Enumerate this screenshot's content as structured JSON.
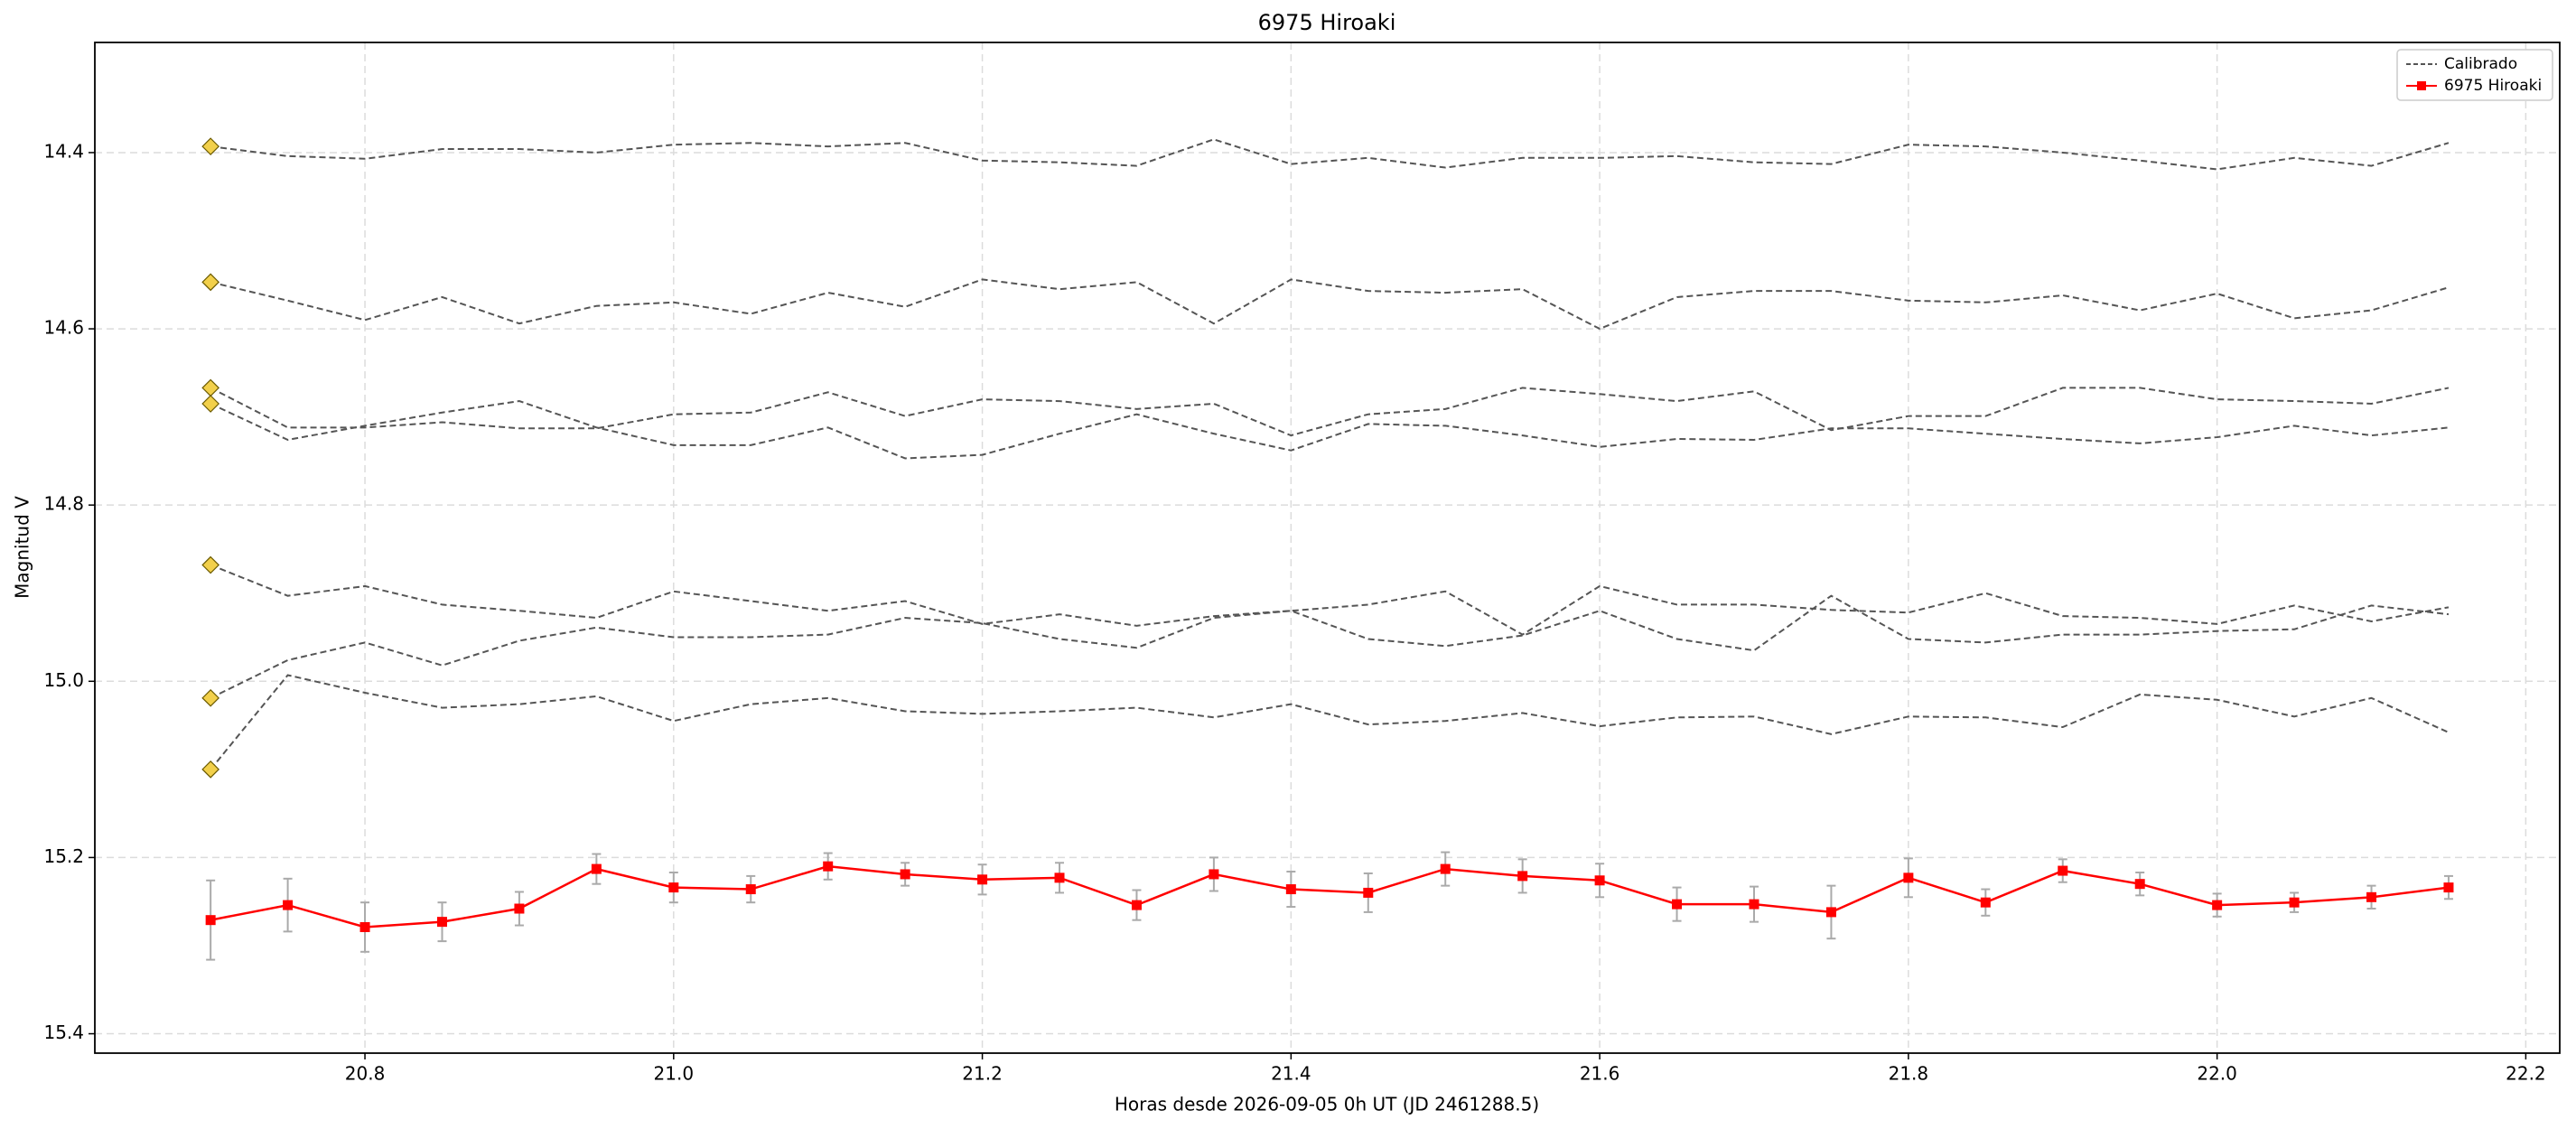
{
  "chart_data": {
    "type": "line",
    "title": "6975 Hiroaki",
    "x_label": "Horas desde 2026-09-05 0h UT (JD 2461288.5)",
    "y_label": "Magnitud V",
    "x": [
      20.7,
      20.75,
      20.8,
      20.85,
      20.9,
      20.95,
      21.0,
      21.05,
      21.1,
      21.15,
      21.2,
      21.25,
      21.3,
      21.35,
      21.4,
      21.45,
      21.5,
      21.55,
      21.6,
      21.65,
      21.7,
      21.75,
      21.8,
      21.85,
      21.9,
      21.95,
      22.0,
      22.05,
      22.1,
      22.15
    ],
    "series": [
      {
        "name": "Calibrado",
        "color": "#555555",
        "dashed": true,
        "start_marker_color": "#f2d04b",
        "values": [
          [
            14.393,
            14.404,
            14.407,
            14.396,
            14.396,
            14.4,
            14.391,
            14.389,
            14.393,
            14.389,
            14.409,
            14.411,
            14.415,
            14.385,
            14.413,
            14.406,
            14.417,
            14.406,
            14.406,
            14.404,
            14.411,
            14.413,
            14.391,
            14.393,
            14.4,
            14.409,
            14.419,
            14.406,
            14.415,
            14.389
          ],
          [
            14.547,
            14.568,
            14.59,
            14.564,
            14.594,
            14.574,
            14.57,
            14.583,
            14.559,
            14.575,
            14.544,
            14.555,
            14.547,
            14.594,
            14.544,
            14.557,
            14.559,
            14.555,
            14.6,
            14.564,
            14.557,
            14.557,
            14.568,
            14.57,
            14.562,
            14.579,
            14.56,
            14.588,
            14.579,
            14.553
          ],
          [
            14.667,
            14.712,
            14.712,
            14.706,
            14.713,
            14.713,
            14.697,
            14.695,
            14.672,
            14.699,
            14.68,
            14.682,
            14.691,
            14.685,
            14.721,
            14.697,
            14.691,
            14.667,
            14.674,
            14.682,
            14.671,
            14.715,
            14.699,
            14.699,
            14.667,
            14.667,
            14.68,
            14.682,
            14.685,
            14.667
          ],
          [
            14.685,
            14.726,
            14.71,
            14.695,
            14.682,
            14.712,
            14.732,
            14.732,
            14.712,
            14.747,
            14.743,
            14.719,
            14.697,
            14.719,
            14.738,
            14.708,
            14.71,
            14.721,
            14.734,
            14.725,
            14.726,
            14.713,
            14.713,
            14.719,
            14.725,
            14.73,
            14.723,
            14.71,
            14.721,
            14.712
          ],
          [
            14.868,
            14.903,
            14.892,
            14.913,
            14.92,
            14.928,
            14.898,
            14.909,
            14.92,
            14.909,
            14.935,
            14.924,
            14.937,
            14.926,
            14.92,
            14.913,
            14.898,
            14.947,
            14.892,
            14.913,
            14.913,
            14.919,
            14.922,
            14.9,
            14.926,
            14.928,
            14.935,
            14.914,
            14.932,
            14.916
          ],
          [
            15.019,
            14.976,
            14.956,
            14.982,
            14.954,
            14.939,
            14.95,
            14.95,
            14.947,
            14.928,
            14.934,
            14.952,
            14.962,
            14.928,
            14.92,
            14.952,
            14.96,
            14.948,
            14.92,
            14.952,
            14.965,
            14.903,
            14.952,
            14.956,
            14.947,
            14.947,
            14.943,
            14.941,
            14.914,
            14.924
          ],
          [
            15.1,
            14.993,
            15.013,
            15.03,
            15.026,
            15.017,
            15.045,
            15.026,
            15.019,
            15.034,
            15.037,
            15.034,
            15.03,
            15.041,
            15.026,
            15.049,
            15.045,
            15.036,
            15.051,
            15.041,
            15.04,
            15.06,
            15.04,
            15.041,
            15.052,
            15.015,
            15.021,
            15.04,
            15.019,
            15.058
          ]
        ]
      },
      {
        "name": "6975 Hiroaki",
        "color": "#ff0000",
        "error_color": "#aaaaaa",
        "values": [
          15.271,
          15.254,
          15.279,
          15.273,
          15.258,
          15.213,
          15.234,
          15.236,
          15.21,
          15.219,
          15.225,
          15.223,
          15.254,
          15.219,
          15.236,
          15.24,
          15.213,
          15.221,
          15.226,
          15.253,
          15.253,
          15.262,
          15.223,
          15.251,
          15.215,
          15.23,
          15.254,
          15.251,
          15.245,
          15.234
        ],
        "errors": [
          0.045,
          0.03,
          0.028,
          0.022,
          0.019,
          0.017,
          0.017,
          0.015,
          0.015,
          0.013,
          0.017,
          0.017,
          0.017,
          0.019,
          0.02,
          0.022,
          0.019,
          0.019,
          0.019,
          0.019,
          0.02,
          0.03,
          0.022,
          0.015,
          0.013,
          0.013,
          0.013,
          0.011,
          0.013,
          0.013
        ]
      }
    ],
    "xlim": [
      20.625,
      22.222
    ],
    "ylim": [
      15.422,
      14.275
    ],
    "xticks": [
      20.8,
      {
        "value": 21,
        "label": "21.0"
      },
      21.2,
      21.4,
      21.6,
      21.8,
      {
        "value": 22,
        "label": "22.0"
      },
      22.2
    ],
    "yticks": [
      14.4,
      14.6,
      14.8,
      {
        "value": 15,
        "label": "15.0"
      },
      15.2,
      15.4
    ],
    "grid": true,
    "legend": "upper right"
  }
}
